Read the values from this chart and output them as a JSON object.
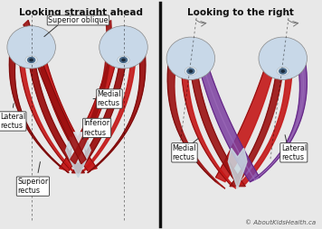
{
  "title_left": "Looking straight ahead",
  "title_right": "Looking to the right",
  "copyright": "© AboutKidsHealth.ca",
  "bg_color": "#e8e8e8",
  "panel_bg": "#e0e0e0",
  "border_color": "#aaaaaa",
  "divider_color": "#111111",
  "label_bg": "#ffffff",
  "label_border": "#333333",
  "muscle_dark": "#6B0A0A",
  "muscle_mid": "#9B1111",
  "muscle_bright": "#C41717",
  "muscle_light": "#D44444",
  "muscle_highlight": "#E8A0A0",
  "muscle_purple_dark": "#5a1a7a",
  "muscle_purple": "#7B3FA0",
  "muscle_purple_light": "#9B6AB8",
  "eye_white": "#dce8f0",
  "eye_globe": "#c8d8e8",
  "eye_iris": "#4a6a8a",
  "eye_pupil": "#1a2a3a",
  "tendon_white": "#c8d8e0",
  "tendon_light": "#e0eaf0",
  "title_fontsize": 7.5,
  "label_fontsize": 5.8,
  "copyright_fontsize": 5.0
}
